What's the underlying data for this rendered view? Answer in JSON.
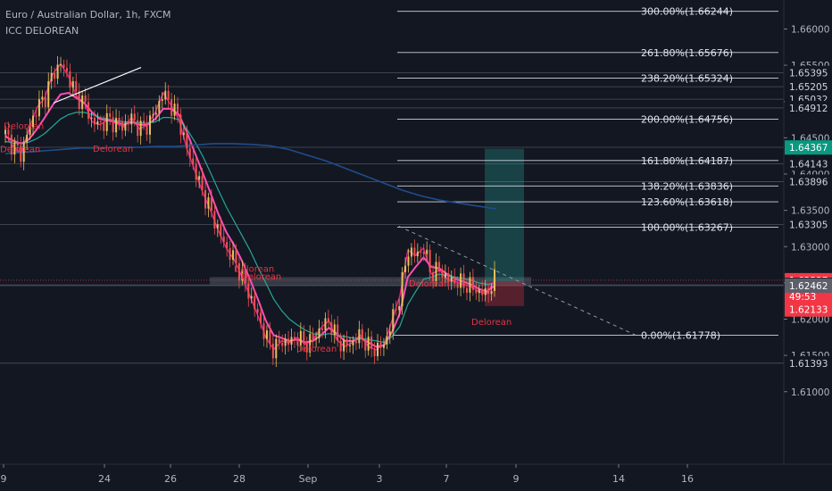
{
  "header": {
    "title": "Euro / Australian Dollar, 1h, FXCM",
    "indicator": "ICC DELOREAN"
  },
  "colors": {
    "background": "#131722",
    "axis_text": "#b2b5be",
    "ema_fast": "#e91e8c",
    "ema_slow": "#26a69a",
    "ema_long": "#1e4d8c",
    "candle_up": "#e6c15a",
    "candle_down": "#ef5350",
    "fib_line": "#d1d4dc",
    "current_price_bg": "#089981",
    "alert_red": "#f23645",
    "target_zone": "#26a69a",
    "stop_zone": "#f23645"
  },
  "chart_data": {
    "type": "line",
    "title": "",
    "xlabel": "",
    "ylabel": "",
    "ylim": [
      1.6,
      1.664
    ],
    "x_ticks": [
      "9",
      "24",
      "26",
      "28",
      "Sep",
      "3",
      "7",
      "9",
      "14",
      "16"
    ],
    "y_ticks": [
      "1.66000",
      "1.65500",
      "1.65000",
      "1.64500",
      "1.64000",
      "1.63500",
      "1.63000",
      "1.62500",
      "1.62000",
      "1.61500",
      "1.61000"
    ],
    "price_markers": [
      {
        "label": "1.65395",
        "style": "plain"
      },
      {
        "label": "1.65205",
        "style": "plain"
      },
      {
        "label": "1.65032",
        "style": "plain"
      },
      {
        "label": "1.64912",
        "style": "plain"
      },
      {
        "label": "1.64369",
        "style": "plain"
      },
      {
        "label": "1.64367",
        "style": "current"
      },
      {
        "label": "1.64143",
        "style": "plain"
      },
      {
        "label": "1.63896",
        "style": "plain"
      },
      {
        "label": "1.63305",
        "style": "plain"
      },
      {
        "label": "1.62537",
        "style": "alert"
      },
      {
        "label": "49:53",
        "style": "timer"
      },
      {
        "label": "1.62472",
        "style": "plain"
      },
      {
        "label": "1.62462",
        "style": "dark"
      },
      {
        "label": "1.62133",
        "style": "alert"
      },
      {
        "label": "1.61393",
        "style": "plain"
      }
    ],
    "fib_levels": [
      {
        "label": "300.00%(1.66244)"
      },
      {
        "label": "261.80%(1.65676)"
      },
      {
        "label": "238.20%(1.65324)"
      },
      {
        "label": "200.00%(1.64756)"
      },
      {
        "label": "161.80%(1.64187)"
      },
      {
        "label": "138.20%(1.63836)"
      },
      {
        "label": "123.60%(1.63618)"
      },
      {
        "label": "100.00%(1.63267)"
      },
      {
        "label": "0.00%(1.61778)"
      }
    ],
    "annotations": [
      "Delorean",
      "Delorean",
      "Delorean",
      "Delorean",
      "Delorean",
      "Delorean",
      "Delorean",
      "Delorean"
    ],
    "series": [
      {
        "values": [
          1.6455,
          1.6438,
          1.6428,
          1.6462,
          1.6492,
          1.6505,
          1.6538,
          1.6552,
          1.6535,
          1.6508,
          1.6498,
          1.6472,
          1.6468,
          1.6475,
          1.647,
          1.6465,
          1.6478,
          1.6462,
          1.6468,
          1.6485,
          1.6512,
          1.6495,
          1.6475,
          1.6435,
          1.6405,
          1.6375,
          1.635,
          1.6322,
          1.6298,
          1.6282,
          1.6258,
          1.6232,
          1.6205,
          1.6175,
          1.6158,
          1.617,
          1.6168,
          1.6175,
          1.6165,
          1.6172,
          1.6188,
          1.6198,
          1.6172,
          1.6162,
          1.6168,
          1.6178,
          1.6162,
          1.6158,
          1.6165,
          1.6198,
          1.6232,
          1.6295,
          1.6288,
          1.6298,
          1.6262,
          1.6268,
          1.6255,
          1.6252,
          1.6248,
          1.6245,
          1.6238,
          1.6235,
          1.6254
        ]
      },
      {
        "values": [
          1.6452,
          1.6446,
          1.6442,
          1.6448,
          1.6462,
          1.6478,
          1.6495,
          1.651,
          1.6512,
          1.6505,
          1.6498,
          1.6485,
          1.6476,
          1.6474,
          1.6472,
          1.6468,
          1.6472,
          1.6468,
          1.6468,
          1.6476,
          1.649,
          1.649,
          1.6482,
          1.6458,
          1.643,
          1.6402,
          1.6374,
          1.6345,
          1.632,
          1.6302,
          1.628,
          1.6255,
          1.6228,
          1.6198,
          1.6178,
          1.6174,
          1.617,
          1.6172,
          1.6168,
          1.617,
          1.6178,
          1.6188,
          1.618,
          1.617,
          1.617,
          1.6174,
          1.6168,
          1.6162,
          1.6164,
          1.6182,
          1.6208,
          1.6258,
          1.6272,
          1.6285,
          1.6272,
          1.627,
          1.6262,
          1.6256,
          1.6252,
          1.6248,
          1.6242,
          1.6238,
          1.6246
        ]
      },
      {
        "values": [
          1.6445,
          1.6443,
          1.6442,
          1.6444,
          1.6449,
          1.6456,
          1.6466,
          1.6476,
          1.6482,
          1.6485,
          1.6485,
          1.6482,
          1.6478,
          1.6476,
          1.6474,
          1.6472,
          1.6472,
          1.6471,
          1.647,
          1.6472,
          1.6478,
          1.6478,
          1.6475,
          1.6462,
          1.6445,
          1.6425,
          1.6402,
          1.6378,
          1.6355,
          1.6335,
          1.6315,
          1.6295,
          1.6272,
          1.625,
          1.6228,
          1.6212,
          1.62,
          1.6192,
          1.6185,
          1.618,
          1.6178,
          1.618,
          1.6178,
          1.6176,
          1.6174,
          1.6174,
          1.6172,
          1.617,
          1.6168,
          1.6176,
          1.619,
          1.622,
          1.6238,
          1.6255,
          1.6258,
          1.6262,
          1.626,
          1.6258,
          1.6256,
          1.6254,
          1.625,
          1.6248,
          1.6249
        ]
      },
      {
        "values": [
          1.6428,
          1.643,
          1.6432,
          1.6434,
          1.6436,
          1.6436,
          1.6437,
          1.6437,
          1.6438,
          1.6438,
          1.644,
          1.6442,
          1.6442,
          1.6441,
          1.6439,
          1.6434,
          1.6426,
          1.6418,
          1.6408,
          1.6398,
          1.6388,
          1.6378,
          1.637,
          1.6364,
          1.636,
          1.6356,
          1.6352
        ]
      }
    ]
  }
}
